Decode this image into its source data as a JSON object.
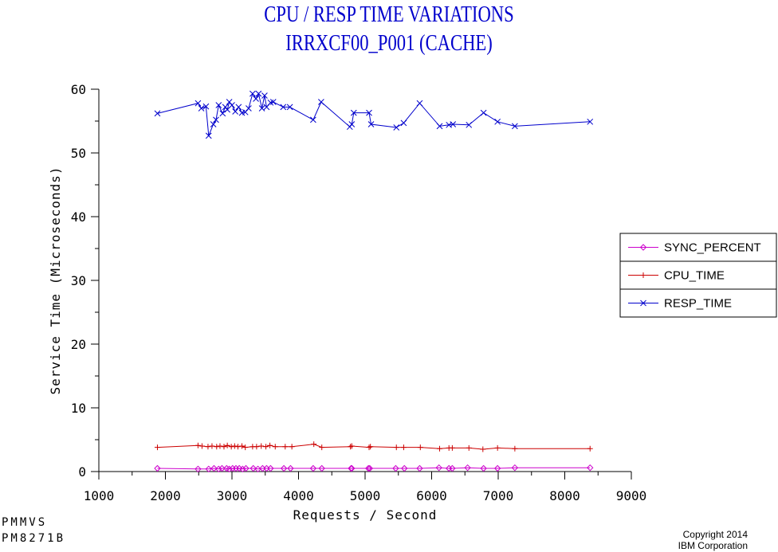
{
  "chart_data": {
    "type": "line",
    "title": "CPU / RESP TIME VARIATIONS",
    "subtitle": "IRRXCF00_P001 (CACHE)",
    "xlabel": "Requests / Second",
    "ylabel": "Service Time (Microseconds)",
    "xlim": [
      1000,
      9000
    ],
    "ylim": [
      0,
      60
    ],
    "x_ticks": [
      1000,
      2000,
      3000,
      4000,
      5000,
      6000,
      7000,
      8000,
      9000
    ],
    "y_ticks": [
      0,
      10,
      20,
      30,
      40,
      50,
      60
    ],
    "grid": false,
    "legend_position": "right",
    "series": [
      {
        "name": "SYNC_PERCENT",
        "color": "#cc00cc",
        "marker": "diamond",
        "points": [
          [
            1880,
            0.5
          ],
          [
            2490,
            0.4
          ],
          [
            2650,
            0.4
          ],
          [
            2730,
            0.5
          ],
          [
            2800,
            0.4
          ],
          [
            2850,
            0.5
          ],
          [
            2920,
            0.5
          ],
          [
            2960,
            0.4
          ],
          [
            3010,
            0.5
          ],
          [
            3060,
            0.5
          ],
          [
            3110,
            0.5
          ],
          [
            3160,
            0.4
          ],
          [
            3210,
            0.5
          ],
          [
            3320,
            0.5
          ],
          [
            3390,
            0.4
          ],
          [
            3460,
            0.5
          ],
          [
            3520,
            0.5
          ],
          [
            3580,
            0.5
          ],
          [
            3780,
            0.5
          ],
          [
            3880,
            0.5
          ],
          [
            4220,
            0.5
          ],
          [
            4350,
            0.5
          ],
          [
            4790,
            0.5
          ],
          [
            4800,
            0.5
          ],
          [
            5050,
            0.5
          ],
          [
            5070,
            0.5
          ],
          [
            5460,
            0.5
          ],
          [
            5590,
            0.5
          ],
          [
            5820,
            0.5
          ],
          [
            6110,
            0.6
          ],
          [
            6260,
            0.5
          ],
          [
            6310,
            0.5
          ],
          [
            6540,
            0.6
          ],
          [
            6780,
            0.5
          ],
          [
            6990,
            0.5
          ],
          [
            7250,
            0.6
          ],
          [
            8380,
            0.6
          ]
        ]
      },
      {
        "name": "CPU_TIME",
        "color": "#cc0000",
        "marker": "plus",
        "points": [
          [
            1880,
            3.8
          ],
          [
            2490,
            4.1
          ],
          [
            2550,
            4.0
          ],
          [
            2640,
            3.9
          ],
          [
            2700,
            4.0
          ],
          [
            2770,
            3.9
          ],
          [
            2820,
            4.0
          ],
          [
            2880,
            3.9
          ],
          [
            2930,
            4.1
          ],
          [
            2990,
            3.9
          ],
          [
            3040,
            4.0
          ],
          [
            3090,
            3.9
          ],
          [
            3150,
            4.0
          ],
          [
            3200,
            3.8
          ],
          [
            3310,
            3.9
          ],
          [
            3370,
            3.9
          ],
          [
            3440,
            4.0
          ],
          [
            3510,
            3.9
          ],
          [
            3570,
            4.1
          ],
          [
            3650,
            3.9
          ],
          [
            3800,
            3.9
          ],
          [
            3900,
            3.9
          ],
          [
            4230,
            4.3
          ],
          [
            4350,
            3.8
          ],
          [
            4780,
            3.9
          ],
          [
            4800,
            4.0
          ],
          [
            5060,
            3.8
          ],
          [
            5080,
            3.9
          ],
          [
            5470,
            3.8
          ],
          [
            5580,
            3.8
          ],
          [
            5830,
            3.8
          ],
          [
            6120,
            3.6
          ],
          [
            6260,
            3.7
          ],
          [
            6310,
            3.7
          ],
          [
            6560,
            3.7
          ],
          [
            6770,
            3.5
          ],
          [
            6990,
            3.7
          ],
          [
            7250,
            3.6
          ],
          [
            8380,
            3.6
          ]
        ]
      },
      {
        "name": "RESP_TIME",
        "color": "#0000cc",
        "marker": "x",
        "points": [
          [
            1880,
            56.2
          ],
          [
            2490,
            57.8
          ],
          [
            2540,
            57.0
          ],
          [
            2610,
            57.3
          ],
          [
            2650,
            52.7
          ],
          [
            2720,
            54.5
          ],
          [
            2760,
            55.2
          ],
          [
            2800,
            57.5
          ],
          [
            2860,
            56.2
          ],
          [
            2900,
            57.2
          ],
          [
            2930,
            56.8
          ],
          [
            2960,
            58.0
          ],
          [
            3000,
            57.5
          ],
          [
            3050,
            56.5
          ],
          [
            3100,
            57.2
          ],
          [
            3150,
            56.3
          ],
          [
            3200,
            56.4
          ],
          [
            3250,
            57.0
          ],
          [
            3310,
            59.3
          ],
          [
            3360,
            58.5
          ],
          [
            3400,
            59.3
          ],
          [
            3450,
            57.0
          ],
          [
            3490,
            59.0
          ],
          [
            3520,
            57.2
          ],
          [
            3580,
            57.9
          ],
          [
            3620,
            58.0
          ],
          [
            3770,
            57.2
          ],
          [
            3870,
            57.2
          ],
          [
            4220,
            55.2
          ],
          [
            4340,
            58.0
          ],
          [
            4770,
            54.1
          ],
          [
            4800,
            54.5
          ],
          [
            4830,
            56.3
          ],
          [
            5060,
            56.3
          ],
          [
            5090,
            54.5
          ],
          [
            5470,
            54.0
          ],
          [
            5580,
            54.7
          ],
          [
            5820,
            57.8
          ],
          [
            6120,
            54.2
          ],
          [
            6260,
            54.4
          ],
          [
            6320,
            54.5
          ],
          [
            6560,
            54.4
          ],
          [
            6780,
            56.3
          ],
          [
            6990,
            54.9
          ],
          [
            7250,
            54.2
          ],
          [
            8380,
            54.9
          ]
        ]
      }
    ]
  },
  "footer": {
    "left_line1": "PMMVS",
    "left_line2": "PM8271B",
    "copyright_line1": "Copyright 2014",
    "copyright_line2": "IBM Corporation"
  }
}
